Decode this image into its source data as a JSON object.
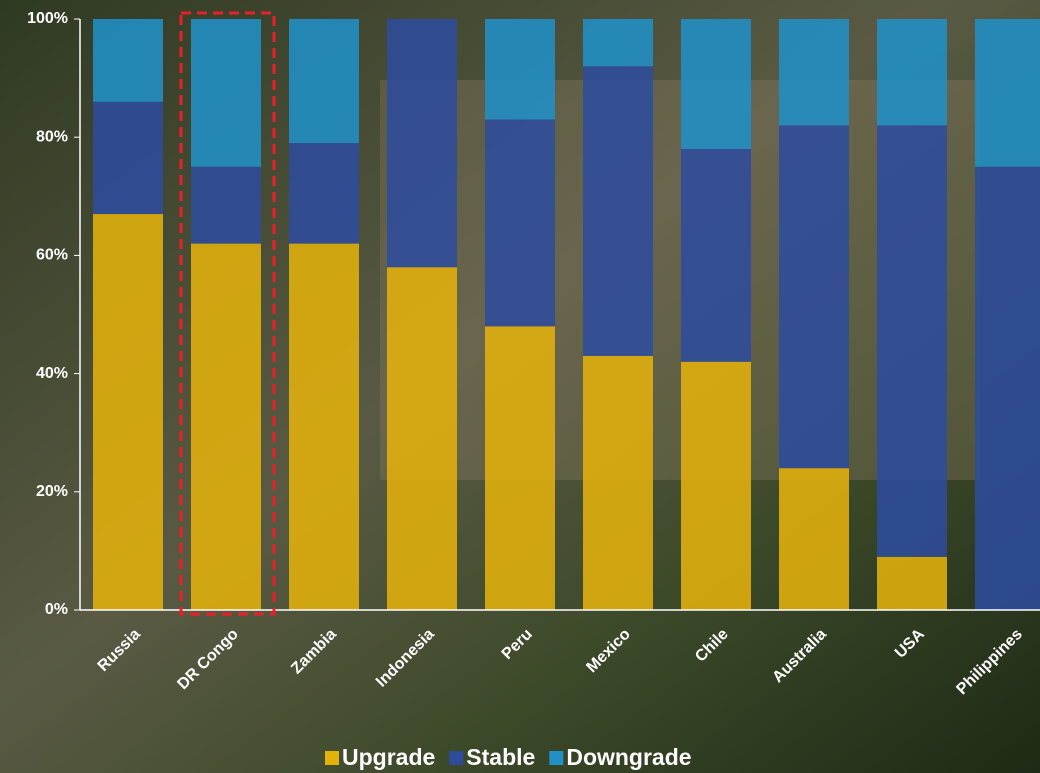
{
  "chart_data": {
    "type": "stacked_bar",
    "categories": [
      "Russia",
      "DR Congo",
      "Zambia",
      "Indonesia",
      "Peru",
      "Mexico",
      "Chile",
      "Australia",
      "USA",
      "Philippines"
    ],
    "series": [
      {
        "name": "Upgrade",
        "color": "#e3b10c",
        "values": [
          67,
          62,
          62,
          58,
          48,
          43,
          42,
          24,
          9,
          0
        ]
      },
      {
        "name": "Stable",
        "color": "#2e4c9c",
        "values": [
          19,
          13,
          17,
          42,
          35,
          49,
          36,
          58,
          73,
          75
        ]
      },
      {
        "name": "Downgrade",
        "color": "#2190c6",
        "values": [
          14,
          25,
          21,
          0,
          17,
          8,
          22,
          18,
          18,
          25
        ]
      }
    ],
    "ylim": [
      0,
      100
    ],
    "yticks": [
      {
        "value": 0,
        "label": "0%"
      },
      {
        "value": 20,
        "label": "20%"
      },
      {
        "value": 40,
        "label": "40%"
      },
      {
        "value": 60,
        "label": "60%"
      },
      {
        "value": 80,
        "label": "80%"
      },
      {
        "value": 100,
        "label": "100%"
      }
    ],
    "legend": "bottom"
  }
}
